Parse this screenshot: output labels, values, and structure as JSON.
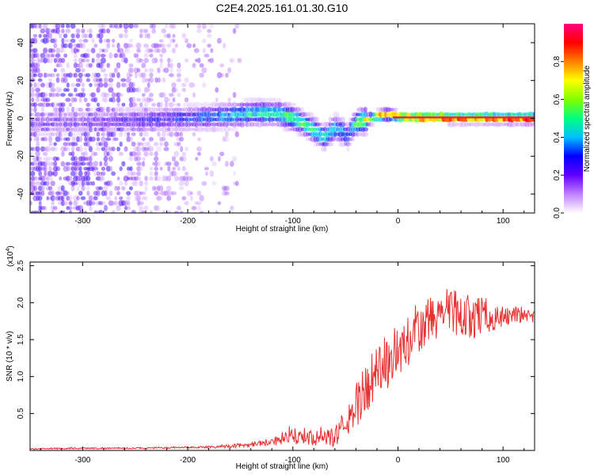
{
  "figure": {
    "title": "C2E4.2025.161.01.30.G10"
  },
  "chart_data": [
    {
      "type": "heatmap",
      "title": "C2E4.2025.161.01.30.G10",
      "xlabel": "Height of straight line (km)",
      "ylabel": "Frequency (Hz)",
      "xlim": [
        -350,
        130
      ],
      "ylim": [
        -50,
        50
      ],
      "xticks": [
        -300,
        -200,
        -100,
        0,
        100
      ],
      "xtick_labels": [
        "-300",
        "-200",
        "-100",
        "0",
        "100"
      ],
      "yticks": [
        -40,
        -20,
        0,
        20,
        40
      ],
      "ytick_labels": [
        "-40",
        "-20",
        "0",
        "20",
        "40"
      ],
      "colorbar": {
        "label": "Normalized spectral amplitude",
        "range": [
          0,
          1
        ],
        "ticks": [
          0.0,
          0.2,
          0.4,
          0.6,
          0.8
        ],
        "tick_labels": [
          "0.0",
          "0.2",
          "0.4",
          "0.6",
          "0.8"
        ],
        "colormap": [
          "#ffffff",
          "#c080ff",
          "#6000ff",
          "#0000ff",
          "#00c0ff",
          "#00ff80",
          "#80ff00",
          "#ffff00",
          "#ff8000",
          "#ff0000",
          "#ff0080"
        ]
      },
      "ridge": {
        "description_points_x_km": [
          -350,
          -300,
          -250,
          -200,
          -170,
          -150,
          -130,
          -110,
          -95,
          -80,
          -70,
          -60,
          -52,
          -48,
          -44,
          -38,
          -30,
          -20,
          -10,
          0,
          20,
          50,
          80,
          130
        ],
        "frequency_hz": [
          -3,
          -2,
          -1,
          0,
          1,
          2,
          3,
          2,
          -1,
          -6,
          -10,
          -5,
          -7,
          -10,
          -5,
          -2,
          -1,
          1,
          2,
          1,
          0.5,
          0.3,
          0.2,
          0
        ],
        "amplitude": [
          0.18,
          0.2,
          0.25,
          0.32,
          0.4,
          0.45,
          0.5,
          0.55,
          0.55,
          0.5,
          0.5,
          0.45,
          0.4,
          0.35,
          0.45,
          0.6,
          0.7,
          0.8,
          0.85,
          0.9,
          0.95,
          0.95,
          0.95,
          0.95
        ]
      }
    },
    {
      "type": "line",
      "title": "",
      "xlabel": "Height of straight line (km)",
      "ylabel": "SNR (10 * v/v)",
      "multiplier_label": "(x10",
      "multiplier_exponent": "4",
      "multiplier_close": ")",
      "xlim": [
        -350,
        130
      ],
      "ylim": [
        0,
        2.55
      ],
      "xticks": [
        -300,
        -200,
        -100,
        0,
        100
      ],
      "xtick_labels": [
        "-300",
        "-200",
        "-100",
        "0",
        "100"
      ],
      "yticks": [
        0.5,
        1.0,
        1.5,
        2.0,
        2.5
      ],
      "ytick_labels": [
        "0.5",
        "1.0",
        "1.5",
        "2.0",
        "2.5"
      ],
      "color": "#e83030",
      "series": [
        {
          "name": "SNR",
          "x": [
            -350,
            -300,
            -250,
            -200,
            -170,
            -150,
            -130,
            -110,
            -100,
            -90,
            -80,
            -70,
            -60,
            -50,
            -40,
            -30,
            -20,
            -10,
            0,
            10,
            20,
            30,
            40,
            50,
            60,
            70,
            80,
            90,
            100,
            110,
            120,
            130
          ],
          "y": [
            0.02,
            0.03,
            0.03,
            0.04,
            0.05,
            0.07,
            0.1,
            0.15,
            0.18,
            0.2,
            0.17,
            0.15,
            0.2,
            0.35,
            0.6,
            0.85,
            1.05,
            1.2,
            1.35,
            1.45,
            1.6,
            1.75,
            1.85,
            1.9,
            1.85,
            1.8,
            1.85,
            1.8,
            1.8,
            1.85,
            1.8,
            1.8
          ],
          "noise": [
            0.01,
            0.01,
            0.01,
            0.01,
            0.02,
            0.03,
            0.04,
            0.08,
            0.12,
            0.12,
            0.1,
            0.1,
            0.15,
            0.2,
            0.3,
            0.35,
            0.4,
            0.4,
            0.4,
            0.35,
            0.35,
            0.35,
            0.3,
            0.35,
            0.3,
            0.3,
            0.25,
            0.2,
            0.15,
            0.12,
            0.1,
            0.1
          ]
        }
      ]
    }
  ]
}
